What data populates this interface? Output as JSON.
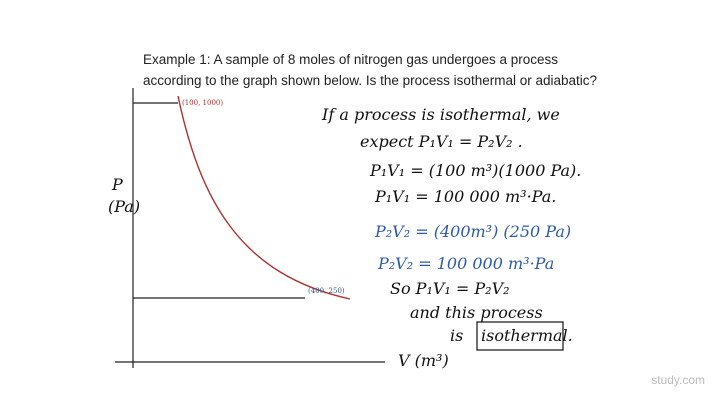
{
  "question": {
    "line1": "Example 1: A sample of 8 moles of nitrogen gas undergoes a process",
    "line2": "according to the graph shown below. Is the process isothermal or adiabatic?"
  },
  "graph": {
    "y_label": "P",
    "y_unit": "(Pa)",
    "x_label": "V (m³)",
    "point1": "(100, 1000)",
    "point2": "(400, 250)"
  },
  "notes": {
    "line1": "If a process is isothermal, we",
    "line2": "expect  P₁V₁ = P₂V₂ .",
    "line3": "P₁V₁ = (100 m³)(1000 Pa).",
    "line4": "P₁V₁ = 100 000 m³·Pa.",
    "line5": "P₂V₂ = (400m³) (250 Pa)",
    "line6": "P₂V₂ = 100 000 m³·Pa",
    "line7": "So  P₁V₁ = P₂V₂",
    "line8": "and this process",
    "line9": "is",
    "answer": "isothermal."
  },
  "watermark": "study.com"
}
